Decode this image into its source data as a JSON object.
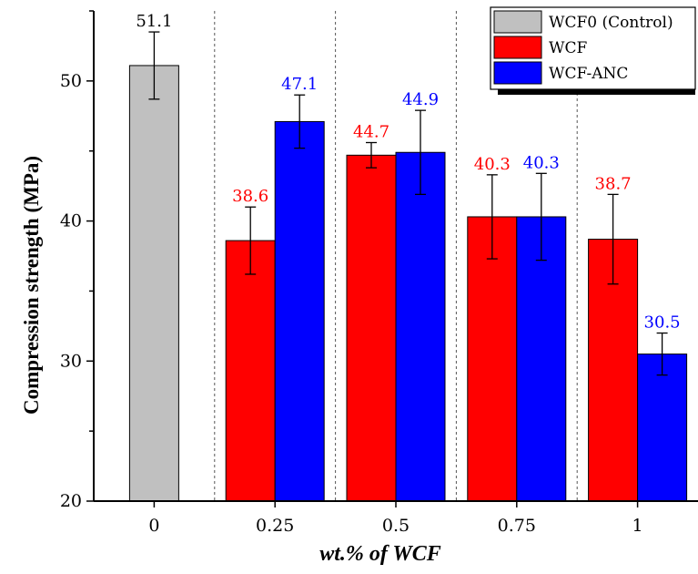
{
  "chart_data": {
    "type": "bar",
    "xlabel": "wt.% of WCF",
    "ylabel": "Compression strength (MPa)",
    "categories": [
      "0",
      "0.25",
      "0.5",
      "0.75",
      "1"
    ],
    "ylim": [
      20,
      55
    ],
    "yticks": [
      20,
      30,
      40,
      50
    ],
    "grid": false,
    "group_separators": "dashed vertical lines between categories",
    "legend_position": "top-right",
    "series": [
      {
        "name": "WCF0 (Control)",
        "color": "#c0c0c0",
        "values": [
          51.1,
          null,
          null,
          null,
          null
        ],
        "errors": [
          2.4,
          null,
          null,
          null,
          null
        ],
        "labels": [
          "51.1",
          null,
          null,
          null,
          null
        ],
        "label_color": "#000000"
      },
      {
        "name": "WCF",
        "color": "#ff0000",
        "values": [
          null,
          38.6,
          44.7,
          40.3,
          38.7
        ],
        "errors": [
          null,
          2.4,
          0.9,
          3.0,
          3.2
        ],
        "labels": [
          null,
          "38.6",
          "44.7",
          "40.3",
          "38.7"
        ],
        "label_color": "#ff0000"
      },
      {
        "name": "WCF-ANC",
        "color": "#0000ff",
        "values": [
          null,
          47.1,
          44.9,
          40.3,
          30.5
        ],
        "errors": [
          null,
          1.9,
          3.0,
          3.1,
          1.5
        ],
        "labels": [
          null,
          "47.1",
          "44.9",
          "40.3",
          "30.5"
        ],
        "label_color": "#0000ff"
      }
    ]
  }
}
